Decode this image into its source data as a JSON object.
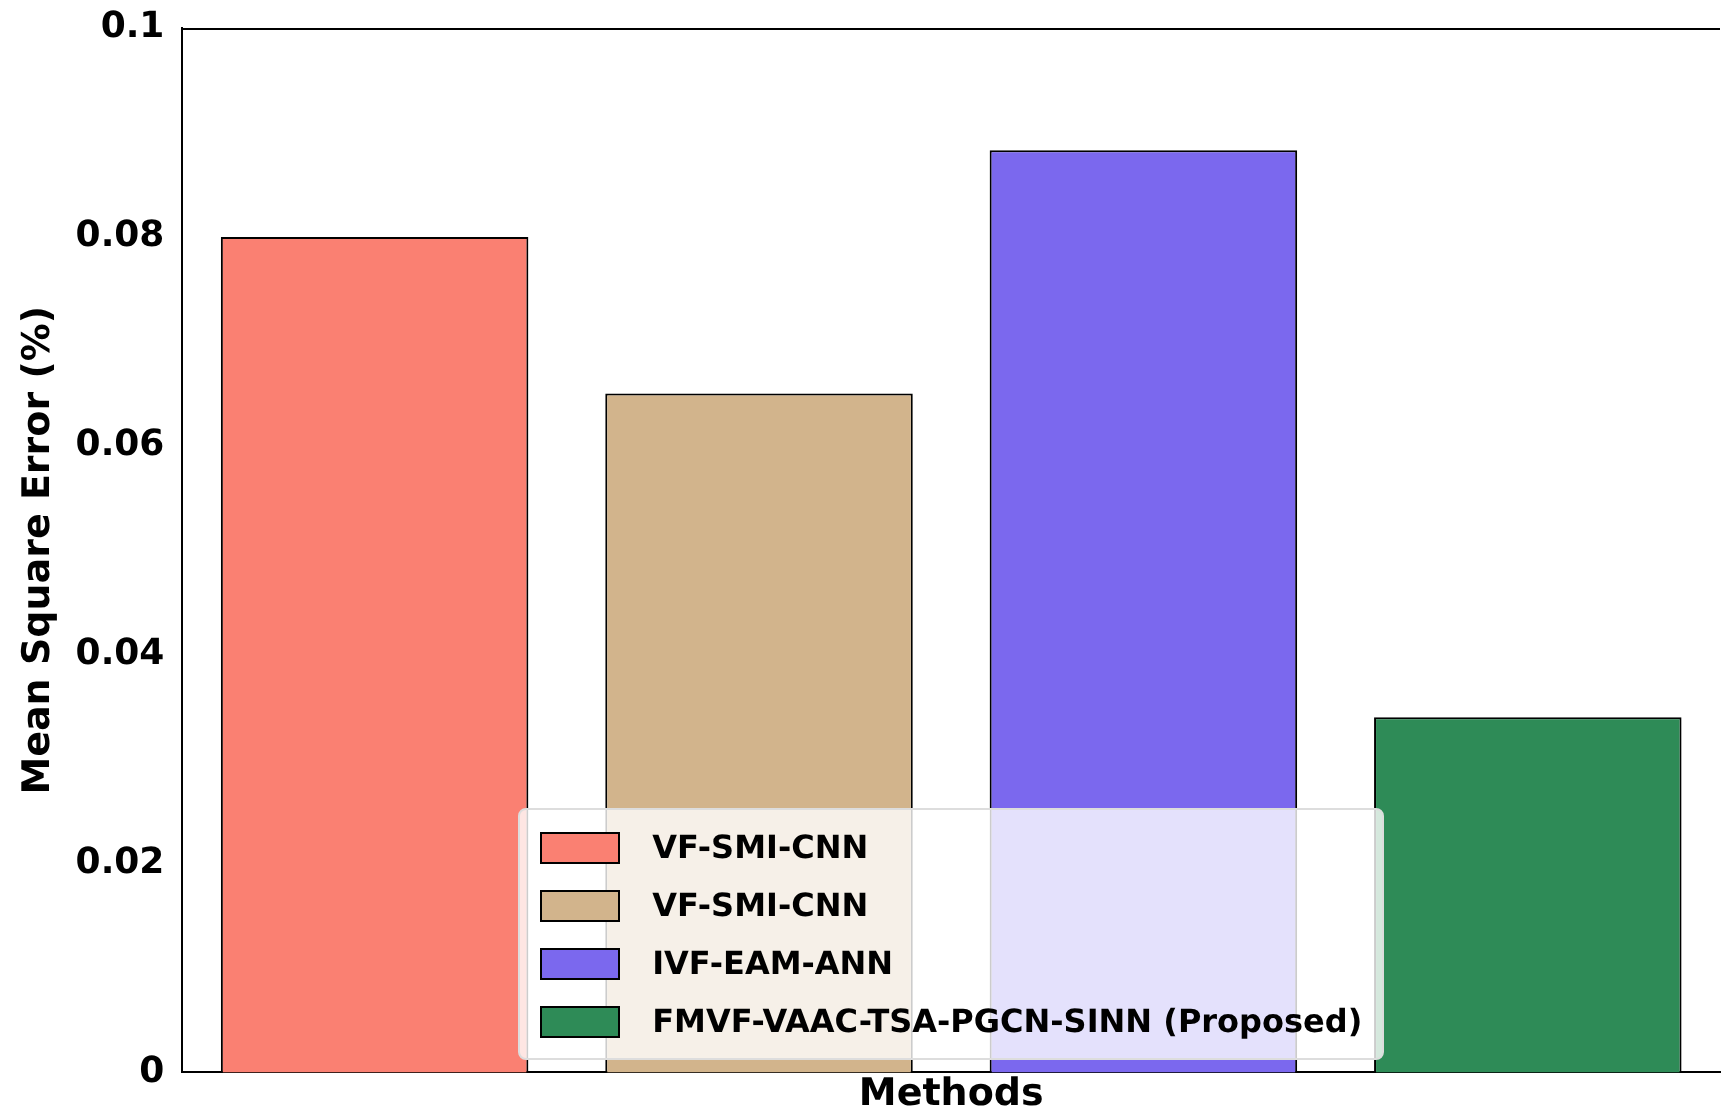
{
  "chart_data": {
    "type": "bar",
    "xlabel": "Methods",
    "ylabel": "Mean Square Error (%)",
    "categories": [
      null,
      null,
      null,
      null
    ],
    "series": [
      {
        "name": "VF-SMI-CNN",
        "color": "#fa8072",
        "values": [
          0.08,
          null,
          null,
          null
        ]
      },
      {
        "name": "VF-SMI-CNN",
        "color": "#d2b48c",
        "values": [
          null,
          0.065,
          null,
          null
        ]
      },
      {
        "name": "IVF-EAM-ANN",
        "color": "#7b68ee",
        "values": [
          null,
          null,
          0.0883,
          null
        ]
      },
      {
        "name": "FMVF-VAAC-TSA-PGCN-SINN (Proposed)",
        "color": "#2e8b57",
        "values": [
          null,
          null,
          null,
          0.034
        ]
      }
    ],
    "ylim": [
      0,
      0.1
    ],
    "yticks": [
      0,
      0.02,
      0.04,
      0.06,
      0.08,
      0.1
    ],
    "grid": false,
    "legend": "bottom",
    "tick_labels": "y"
  }
}
